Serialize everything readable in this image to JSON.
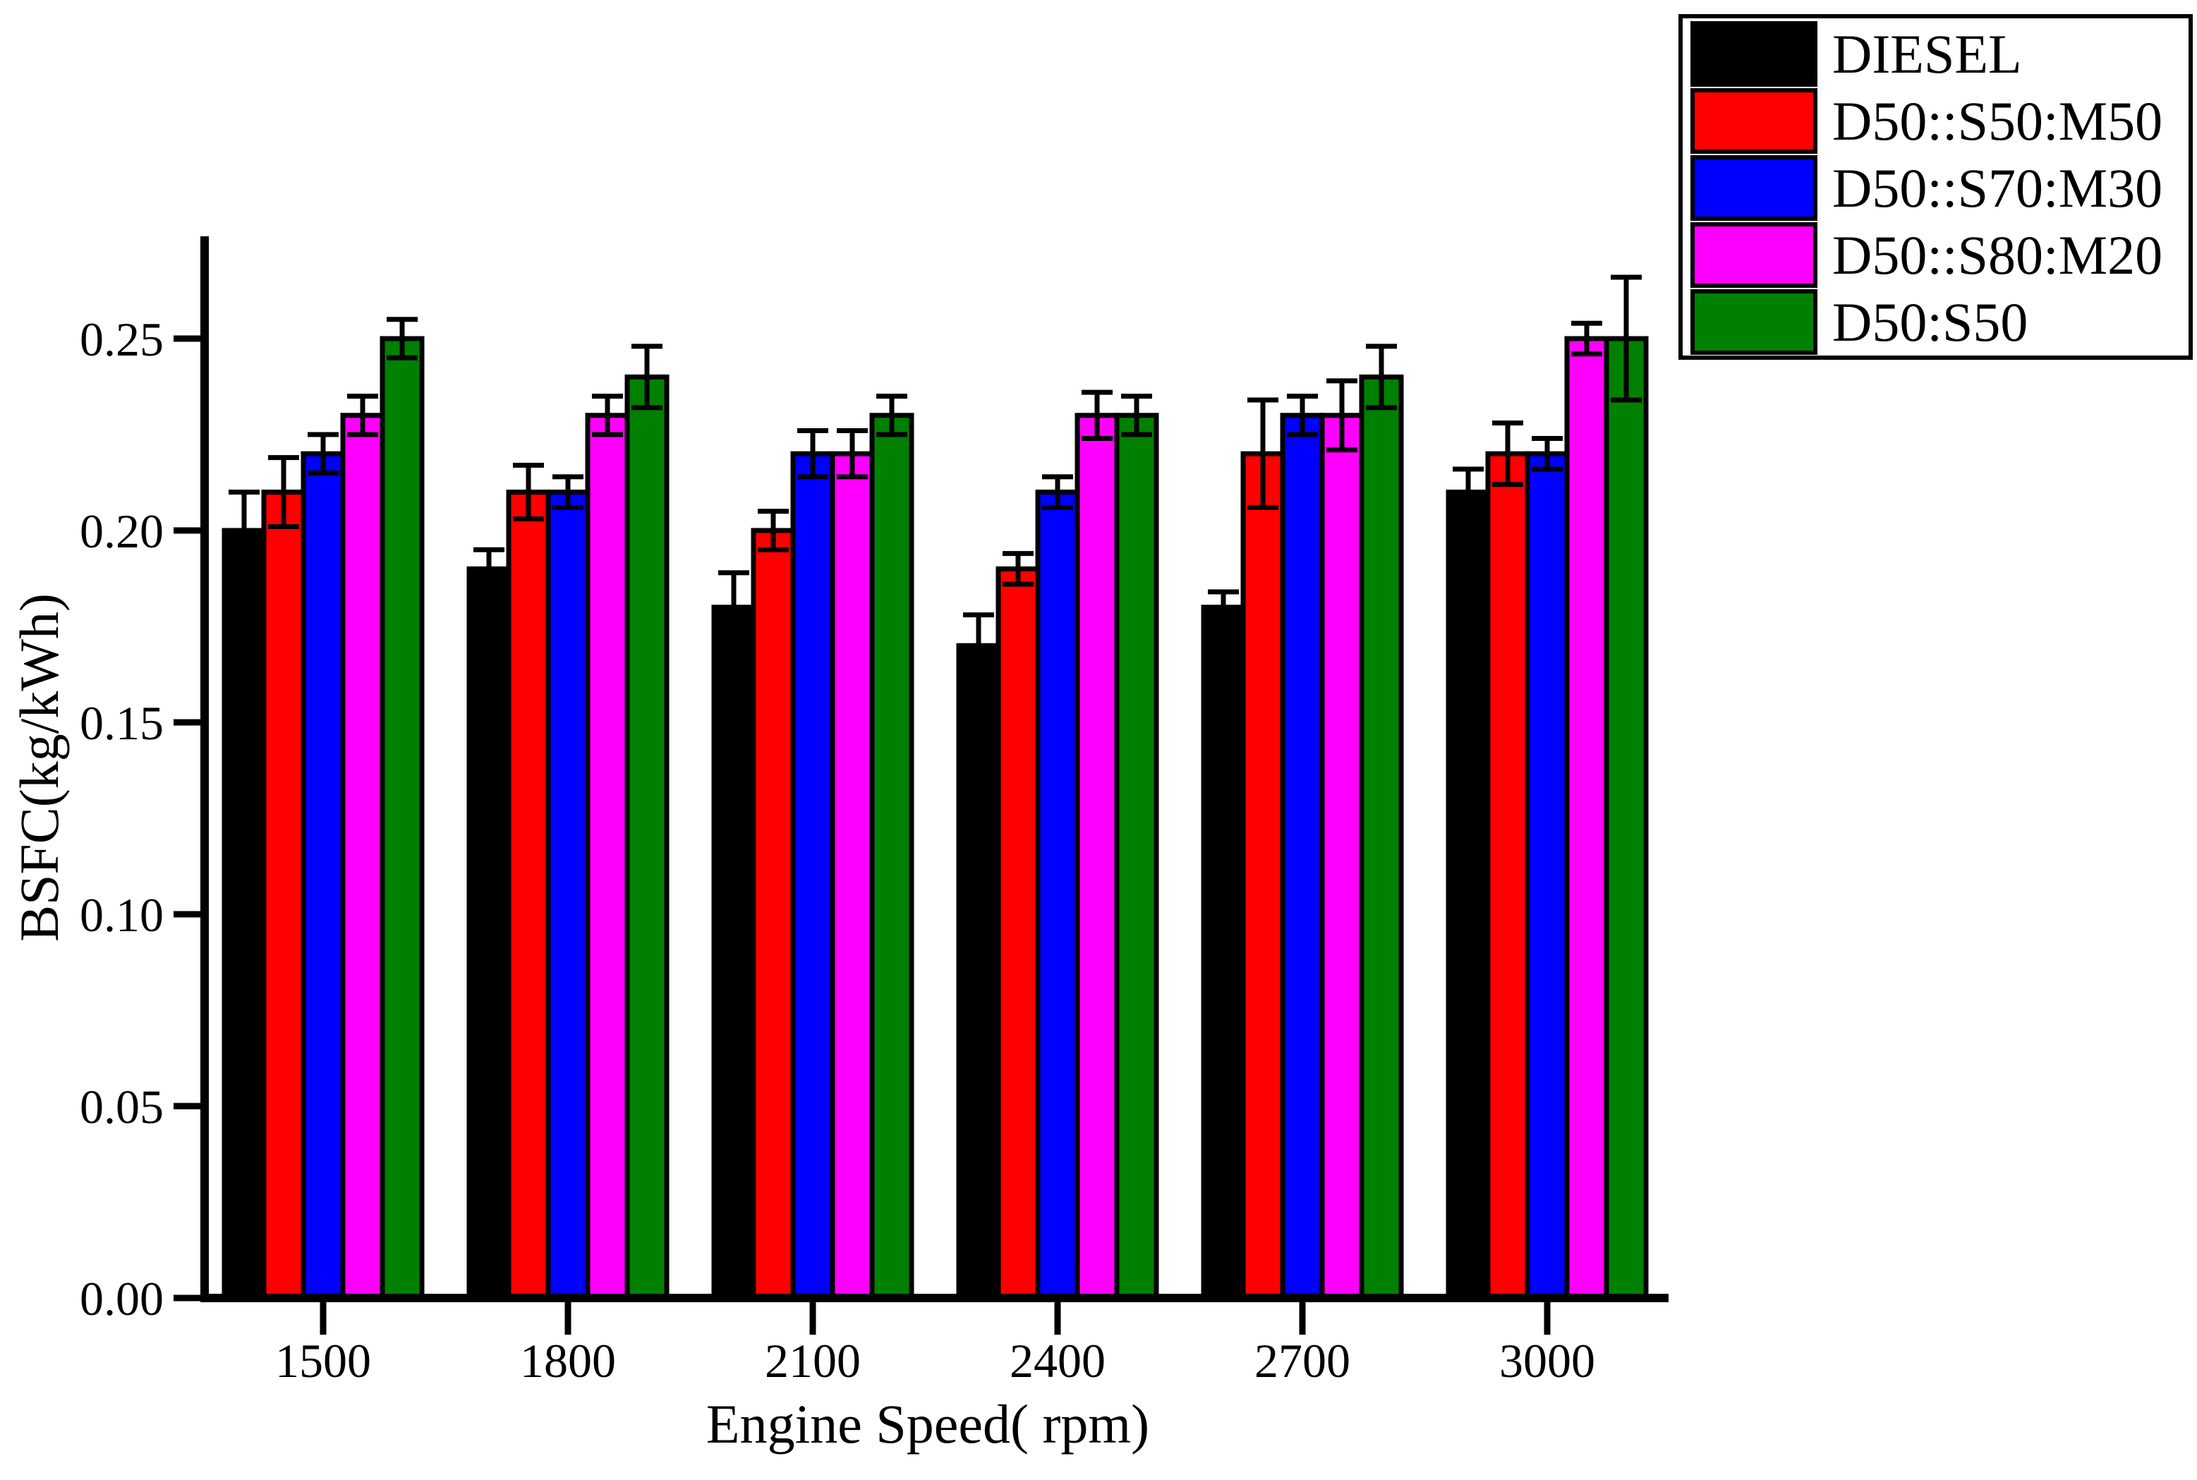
{
  "chart_data": {
    "type": "bar",
    "title": "",
    "xlabel": "Engine Speed( rpm)",
    "ylabel": "BSFC(kg/kWh)",
    "categories": [
      "1500",
      "1800",
      "2100",
      "2400",
      "2700",
      "3000"
    ],
    "yticks": [
      {
        "value": 0.0,
        "label": "0.00"
      },
      {
        "value": 0.05,
        "label": "0.05"
      },
      {
        "value": 0.1,
        "label": "0.10"
      },
      {
        "value": 0.15,
        "label": "0.15"
      },
      {
        "value": 0.2,
        "label": "0.20"
      },
      {
        "value": 0.25,
        "label": "0.25"
      }
    ],
    "ylim": [
      0,
      0.2767
    ],
    "grid": false,
    "legend_position": "top-right",
    "series": [
      {
        "name": "DIESEL",
        "color": "#000000",
        "values": [
          0.2,
          0.19,
          0.18,
          0.17,
          0.18,
          0.21
        ],
        "errors": [
          0.01,
          0.005,
          0.009,
          0.008,
          0.004,
          0.006
        ]
      },
      {
        "name": "D50::S50:M50",
        "color": "#ff0000",
        "values": [
          0.21,
          0.21,
          0.2,
          0.19,
          0.22,
          0.22
        ],
        "errors": [
          0.009,
          0.007,
          0.005,
          0.004,
          0.014,
          0.008
        ]
      },
      {
        "name": "D50::S70:M30",
        "color": "#0000ff",
        "values": [
          0.22,
          0.21,
          0.22,
          0.21,
          0.23,
          0.22
        ],
        "errors": [
          0.005,
          0.004,
          0.006,
          0.004,
          0.005,
          0.004
        ]
      },
      {
        "name": "D50::S80:M20",
        "color": "#ff00ff",
        "values": [
          0.23,
          0.23,
          0.22,
          0.23,
          0.23,
          0.25
        ],
        "errors": [
          0.005,
          0.005,
          0.006,
          0.006,
          0.009,
          0.004
        ]
      },
      {
        "name": "D50:S50",
        "color": "#008000",
        "values": [
          0.25,
          0.24,
          0.23,
          0.23,
          0.24,
          0.25
        ],
        "errors": [
          0.005,
          0.008,
          0.005,
          0.005,
          0.008,
          0.016
        ]
      }
    ]
  },
  "colors": {
    "axis": "#000000",
    "background": "#ffffff",
    "legend_border": "#000000",
    "legend_background": "#ffffff"
  }
}
